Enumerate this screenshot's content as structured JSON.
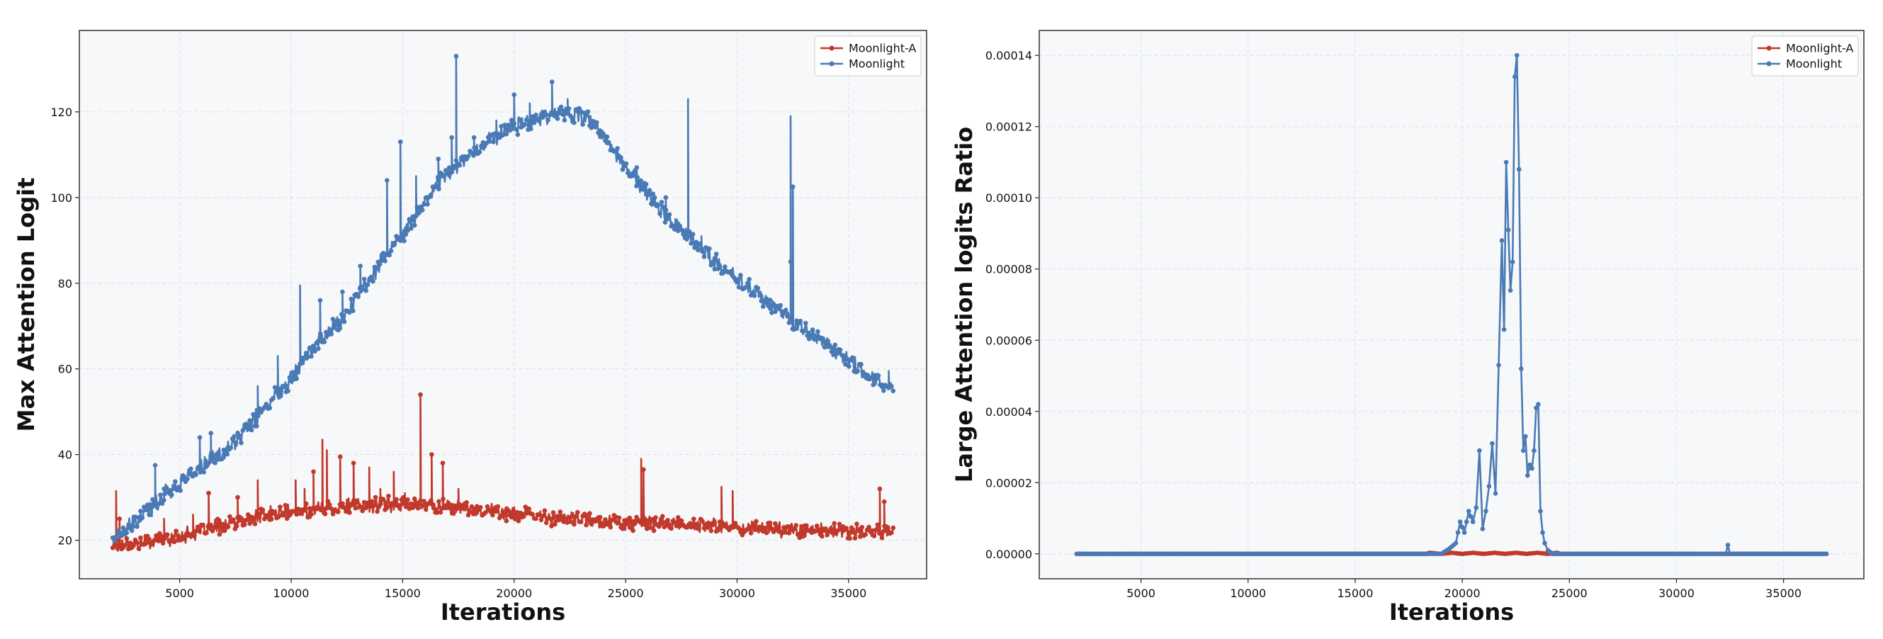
{
  "chart_data": [
    {
      "type": "line",
      "xlabel": "Iterations",
      "ylabel": "Max Attention Logit",
      "xlim": [
        500,
        38500
      ],
      "ylim": [
        11,
        139
      ],
      "xticks": [
        "5000",
        "10000",
        "15000",
        "20000",
        "25000",
        "30000",
        "35000"
      ],
      "yticks": [
        "20",
        "40",
        "60",
        "80",
        "100",
        "120"
      ],
      "xtick_values": [
        5000,
        10000,
        15000,
        20000,
        25000,
        30000,
        35000
      ],
      "ytick_values": [
        20,
        40,
        60,
        80,
        100,
        120
      ],
      "grid": true,
      "legend_position": "top-right",
      "series": [
        {
          "name": "Moonlight-A",
          "color": "#c0392b",
          "x": [
            2000,
            2300,
            2600,
            3000,
            3500,
            4000,
            4500,
            5000,
            5500,
            6000,
            6500,
            7000,
            7500,
            8000,
            8500,
            9000,
            9500,
            10000,
            10500,
            11000,
            11500,
            12000,
            12500,
            13000,
            13500,
            14000,
            14500,
            15000,
            15500,
            16000,
            16500,
            17000,
            17500,
            18000,
            18500,
            19000,
            19500,
            20000,
            20500,
            21000,
            21500,
            22000,
            22500,
            23000,
            23500,
            24000,
            24500,
            25000,
            25500,
            26000,
            26500,
            27000,
            27500,
            28000,
            28500,
            29000,
            29500,
            30000,
            30500,
            31000,
            31500,
            32000,
            32500,
            33000,
            33500,
            34000,
            34500,
            35000,
            35500,
            36000,
            36500,
            37000
          ],
          "y": [
            18.5,
            19,
            19.5,
            19,
            19.5,
            20,
            20.5,
            21,
            21.5,
            22,
            23,
            23.5,
            24,
            24.5,
            25.5,
            26,
            26.5,
            26.5,
            27,
            27,
            27.5,
            27.5,
            28,
            28,
            28,
            28.5,
            28.5,
            28.5,
            28.5,
            28,
            28,
            28,
            27.5,
            27.5,
            27,
            27,
            26.5,
            26,
            26,
            25.5,
            25.5,
            25,
            25,
            25,
            24.5,
            24.5,
            24.5,
            24,
            24,
            24,
            24,
            24,
            23.5,
            23.5,
            23.5,
            23.5,
            23,
            23,
            23,
            23,
            23,
            22.5,
            22.5,
            22.5,
            22.5,
            22,
            22,
            22,
            22,
            22,
            22,
            22
          ],
          "spikes": [
            [
              2150,
              31.5
            ],
            [
              2300,
              25
            ],
            [
              4300,
              25
            ],
            [
              5600,
              26
            ],
            [
              6300,
              31
            ],
            [
              7600,
              30
            ],
            [
              8500,
              34
            ],
            [
              10200,
              34
            ],
            [
              10600,
              32
            ],
            [
              11000,
              36
            ],
            [
              11400,
              43.5
            ],
            [
              11600,
              41
            ],
            [
              12200,
              39.5
            ],
            [
              12800,
              38
            ],
            [
              13500,
              37
            ],
            [
              14000,
              32
            ],
            [
              14600,
              36
            ],
            [
              15100,
              31
            ],
            [
              15800,
              54
            ],
            [
              16300,
              40
            ],
            [
              16800,
              38
            ],
            [
              17500,
              32
            ],
            [
              25700,
              39
            ],
            [
              25800,
              36.5
            ],
            [
              29300,
              32.5
            ],
            [
              29800,
              31.5
            ],
            [
              36400,
              32
            ],
            [
              36600,
              29
            ]
          ]
        },
        {
          "name": "Moonlight",
          "color": "#4a7ab5",
          "x": [
            2000,
            2500,
            3000,
            3500,
            4000,
            4500,
            5000,
            5500,
            6000,
            6500,
            7000,
            7500,
            8000,
            8500,
            9000,
            9500,
            10000,
            10500,
            11000,
            11500,
            12000,
            12500,
            13000,
            13500,
            14000,
            14500,
            15000,
            15500,
            16000,
            16500,
            17000,
            17500,
            18000,
            18500,
            19000,
            19500,
            20000,
            20500,
            21000,
            21500,
            22000,
            22500,
            23000,
            23500,
            24000,
            24500,
            25000,
            25500,
            26000,
            26500,
            27000,
            27500,
            28000,
            28500,
            29000,
            29500,
            30000,
            30500,
            31000,
            31500,
            32000,
            32500,
            33000,
            33500,
            34000,
            34500,
            35000,
            35500,
            36000,
            36500,
            37000
          ],
          "y": [
            20.5,
            22,
            24,
            26.5,
            29,
            31.5,
            33.5,
            35.5,
            37,
            39,
            40.5,
            43,
            46,
            49,
            52,
            55,
            58,
            62,
            65,
            68,
            70,
            73,
            77,
            81,
            85,
            88,
            91,
            95,
            99,
            103,
            106,
            108,
            110,
            112,
            114,
            115.5,
            116.5,
            117.5,
            118.5,
            119.5,
            120,
            119.5,
            119,
            117.5,
            114,
            111,
            107,
            104,
            101,
            98,
            95,
            92.5,
            90,
            87.5,
            85,
            83,
            81,
            79,
            77,
            75,
            73,
            71,
            69,
            67.5,
            66,
            64,
            62,
            60,
            58,
            56.5,
            55
          ],
          "spikes": [
            [
              3900,
              37.5
            ],
            [
              4300,
              32
            ],
            [
              5900,
              44
            ],
            [
              6400,
              45
            ],
            [
              8500,
              56
            ],
            [
              9400,
              63
            ],
            [
              10400,
              79.5
            ],
            [
              11300,
              76
            ],
            [
              12300,
              78
            ],
            [
              13100,
              84
            ],
            [
              14300,
              104
            ],
            [
              14900,
              113
            ],
            [
              15600,
              105
            ],
            [
              16600,
              109
            ],
            [
              17200,
              114
            ],
            [
              17400,
              133
            ],
            [
              18200,
              114
            ],
            [
              19200,
              118
            ],
            [
              20000,
              124
            ],
            [
              20700,
              122
            ],
            [
              21700,
              127
            ],
            [
              22400,
              123
            ],
            [
              25500,
              107
            ],
            [
              26800,
              100
            ],
            [
              27800,
              123
            ],
            [
              28400,
              91
            ],
            [
              32400,
              119
            ],
            [
              32500,
              102.5
            ],
            [
              32400,
              85
            ],
            [
              36800,
              59.5
            ]
          ]
        }
      ]
    },
    {
      "type": "line",
      "xlabel": "Iterations",
      "ylabel": "Large Attention logits Ratio",
      "xlim": [
        250,
        38750
      ],
      "ylim": [
        -7e-06,
        0.000147
      ],
      "xticks": [
        "5000",
        "10000",
        "15000",
        "20000",
        "25000",
        "30000",
        "35000"
      ],
      "yticks": [
        "0.00000",
        "0.00002",
        "0.00004",
        "0.00006",
        "0.00008",
        "0.00010",
        "0.00012",
        "0.00014"
      ],
      "xtick_values": [
        5000,
        10000,
        15000,
        20000,
        25000,
        30000,
        35000
      ],
      "ytick_values": [
        0,
        2e-05,
        4e-05,
        6e-05,
        8e-05,
        0.0001,
        0.00012,
        0.00014
      ],
      "grid": true,
      "legend_position": "top-right",
      "series": [
        {
          "name": "Moonlight-A",
          "color": "#c0392b",
          "x": [
            2000,
            18300,
            18500,
            19000,
            19500,
            20000,
            20500,
            21000,
            21500,
            22000,
            22500,
            23000,
            23500,
            24000,
            24400,
            24600,
            37000
          ],
          "y": [
            0,
            0,
            3e-07,
            0,
            3e-07,
            0,
            3e-07,
            0,
            3e-07,
            0,
            3e-07,
            0,
            3e-07,
            0,
            3e-07,
            0,
            0
          ]
        },
        {
          "name": "Moonlight",
          "color": "#4a7ab5",
          "x": [
            2000,
            18000,
            19000,
            19400,
            19700,
            19900,
            20100,
            20300,
            20500,
            20650,
            20800,
            20950,
            21100,
            21250,
            21400,
            21550,
            21700,
            21850,
            21950,
            22050,
            22150,
            22250,
            22350,
            22450,
            22550,
            22650,
            22750,
            22850,
            22950,
            23050,
            23150,
            23250,
            23350,
            23450,
            23550,
            23650,
            23750,
            23850,
            24000,
            24200,
            24500,
            25000,
            32300,
            32400,
            32500,
            37000
          ],
          "y": [
            0,
            0,
            0,
            1.5e-06,
            3e-06,
            9e-06,
            6e-06,
            1.2e-05,
            9e-06,
            1.3e-05,
            2.9e-05,
            7e-06,
            1.2e-05,
            1.9e-05,
            3.1e-05,
            1.7e-05,
            5.3e-05,
            8.8e-05,
            6.3e-05,
            0.00011,
            9.1e-05,
            7.4e-05,
            8.2e-05,
            0.000134,
            0.00014,
            0.000108,
            5.2e-05,
            2.9e-05,
            3.3e-05,
            2.2e-05,
            2.5e-05,
            2.4e-05,
            2.9e-05,
            4.1e-05,
            4.2e-05,
            1.2e-05,
            6e-06,
            3e-06,
            1e-06,
            0,
            0,
            0,
            0,
            2.5e-06,
            0,
            0
          ]
        }
      ]
    }
  ]
}
